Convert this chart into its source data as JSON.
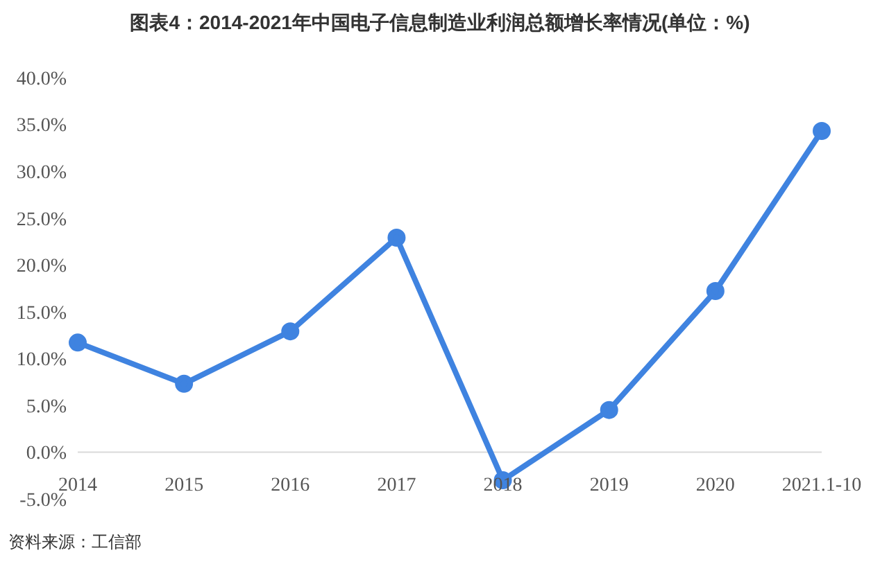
{
  "chart_data": {
    "type": "line",
    "title": "图表4：2014-2021年中国电子信息制造业利润总额增长率情况(单位：%)",
    "categories": [
      "2014",
      "2015",
      "2016",
      "2017",
      "2018",
      "2019",
      "2020",
      "2021.1-10"
    ],
    "series": [
      {
        "color": "#3f83e0",
        "values": [
          11.7,
          7.3,
          12.9,
          22.9,
          -3.0,
          4.5,
          17.2,
          34.3
        ]
      }
    ],
    "ylim": [
      -5,
      40
    ],
    "yticks": [
      {
        "value": -5,
        "label": "-5.0%"
      },
      {
        "value": 0,
        "label": "0.0%"
      },
      {
        "value": 5,
        "label": "5.0%"
      },
      {
        "value": 10,
        "label": "10.0%"
      },
      {
        "value": 15,
        "label": "15.0%"
      },
      {
        "value": 20,
        "label": "20.0%"
      },
      {
        "value": 25,
        "label": "25.0%"
      },
      {
        "value": 30,
        "label": "30.0%"
      },
      {
        "value": 35,
        "label": "35.0%"
      },
      {
        "value": 40,
        "label": "40.0%"
      }
    ],
    "marker": "circle",
    "line_style": "solid",
    "grid": false,
    "legend": false,
    "annotations": [
      "资料来源：工信部"
    ]
  }
}
